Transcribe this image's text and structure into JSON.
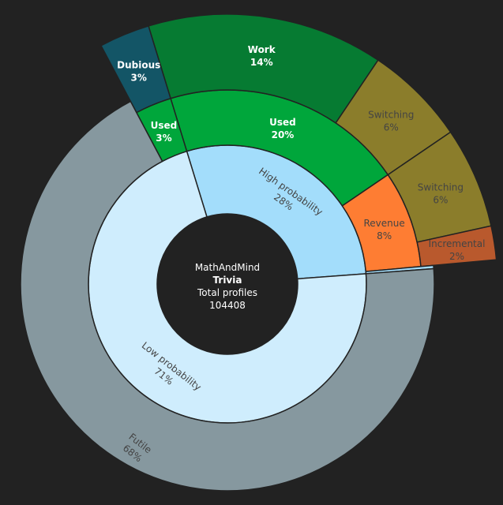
{
  "chart_data": {
    "type": "sunburst",
    "center": {
      "line1": "MathAndMind",
      "line2": "Trivia",
      "line3": "Total profiles",
      "line4": "104408"
    },
    "total": 104408,
    "segments": [
      {
        "id": "high",
        "label": "High probability",
        "percent": "28%",
        "value": 28,
        "color": "#a3ddfb",
        "text_color": "#444444",
        "children": [
          {
            "id": "used-high",
            "label": "Used",
            "percent": "20%",
            "value": 20,
            "color": "#00a63b",
            "text_color": "#ffffff",
            "children": [
              {
                "id": "work",
                "label": "Work",
                "percent": "14%",
                "value": 14,
                "color": "#067b32",
                "text_color": "#ffffff"
              },
              {
                "id": "switching-1",
                "label": "Switching",
                "percent": "6%",
                "value": 6,
                "color": "#8b7d2b",
                "text_color": "#444444"
              }
            ]
          },
          {
            "id": "revenue",
            "label": "Revenue",
            "percent": "8%",
            "value": 8,
            "color": "#fe7d33",
            "text_color": "#444444",
            "children": [
              {
                "id": "switching-2",
                "label": "Switching",
                "percent": "6%",
                "value": 6,
                "color": "#8b7d2b",
                "text_color": "#444444"
              },
              {
                "id": "incremental",
                "label": "Incremental",
                "percent": "2%",
                "value": 2,
                "color": "#b9592d",
                "text_color": "#444444"
              }
            ]
          },
          {
            "id": "high-sliver",
            "label": "",
            "percent": "",
            "value": 0.25,
            "color": "#a3ddfb",
            "text_color": "#444444"
          }
        ]
      },
      {
        "id": "low",
        "label": "Low probability",
        "percent": "71%",
        "value": 71,
        "color": "#cfedfd",
        "text_color": "#444444",
        "children": [
          {
            "id": "used-low",
            "label": "Used",
            "percent": "3%",
            "value": 3,
            "color": "#00a63b",
            "text_color": "#ffffff",
            "children": [
              {
                "id": "dubious",
                "label": "Dubious",
                "percent": "3%",
                "value": 3,
                "color": "#135566",
                "text_color": "#ffffff"
              }
            ]
          },
          {
            "id": "futile",
            "label": "Futile",
            "percent": "68%",
            "value": 68,
            "color": "#86989f",
            "text_color": "#444444"
          }
        ]
      }
    ]
  }
}
